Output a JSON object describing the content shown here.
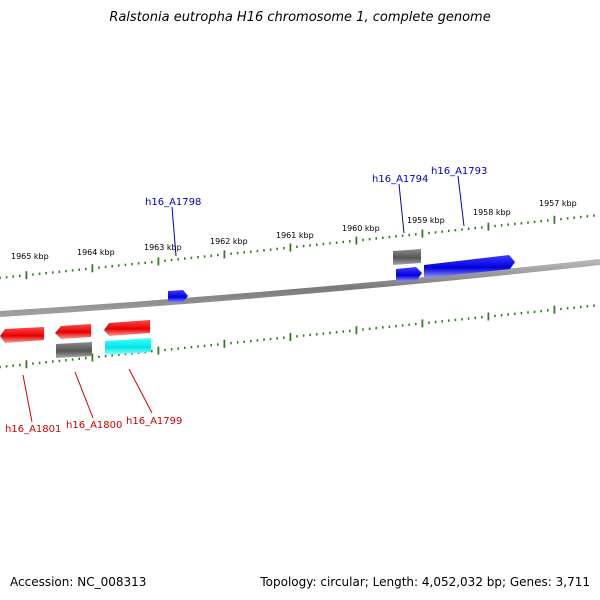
{
  "title": "Ralstonia eutropha H16 chromosome 1, complete genome",
  "footer": {
    "accession": "Accession: NC_008313",
    "summary": "Topology: circular; Length: 4,052,032 bp; Genes: 3,711"
  },
  "colors": {
    "forward_label": "#0000bb",
    "reverse_label": "#cc0000",
    "tick": "#2e7d1e",
    "backbone": "#8a8a8a"
  },
  "tick_labels": [
    {
      "kbp": 1965,
      "text": "1965 kbp"
    },
    {
      "kbp": 1964,
      "text": "1964 kbp"
    },
    {
      "kbp": 1963,
      "text": "1963 kbp"
    },
    {
      "kbp": 1962,
      "text": "1962 kbp"
    },
    {
      "kbp": 1961,
      "text": "1961 kbp"
    },
    {
      "kbp": 1960,
      "text": "1960 kbp"
    },
    {
      "kbp": 1959,
      "text": "1959 kbp"
    },
    {
      "kbp": 1958,
      "text": "1958 kbp"
    },
    {
      "kbp": 1957,
      "text": "1957 kbp"
    }
  ],
  "genes": [
    {
      "name": "h16_A1798",
      "strand": "forward",
      "color": "blue"
    },
    {
      "name": "h16_A1794",
      "strand": "forward",
      "color": "blue"
    },
    {
      "name": "h16_A1793",
      "strand": "forward",
      "color": "blue"
    },
    {
      "name": "h16_A1801",
      "strand": "reverse",
      "color": "red"
    },
    {
      "name": "h16_A1800",
      "strand": "reverse",
      "color": "red"
    },
    {
      "name": "h16_A1799",
      "strand": "reverse",
      "color": "red"
    }
  ]
}
